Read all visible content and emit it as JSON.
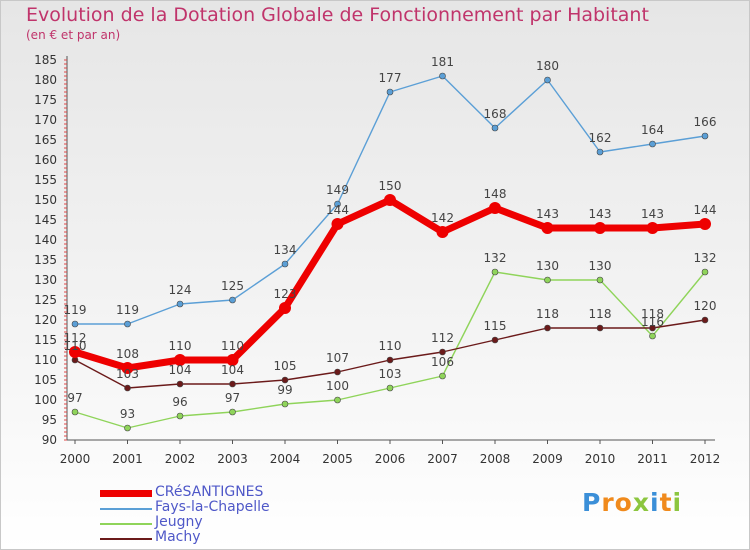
{
  "title": "Evolution de la Dotation Globale de Fonctionnement par Habitant",
  "subtitle": "(en € et par an)",
  "logo": {
    "letters": [
      "P",
      "r",
      "o",
      "x",
      "i",
      "t",
      "i"
    ],
    "colors": [
      "#3b8fd8",
      "#f08a1c",
      "#f08a1c",
      "#8cc63f",
      "#3b8fd8",
      "#f08a1c",
      "#8cc63f"
    ]
  },
  "chart_data": {
    "type": "line",
    "title": "Evolution de la Dotation Globale de Fonctionnement par Habitant",
    "subtitle": "(en € et par an)",
    "x": [
      "2000",
      "2001",
      "2002",
      "2003",
      "2004",
      "2005",
      "2006",
      "2007",
      "2008",
      "2009",
      "2010",
      "2011",
      "2012"
    ],
    "yticks": [
      90,
      95,
      100,
      105,
      110,
      115,
      120,
      125,
      130,
      135,
      140,
      145,
      150,
      155,
      160,
      165,
      170,
      175,
      180,
      185
    ],
    "ylim": [
      90,
      185
    ],
    "grid": false,
    "legend_position": "bottom-left",
    "series": [
      {
        "name": "Fays-la-Chapelle",
        "color": "#5b9fd6",
        "values": [
          119,
          119,
          124,
          125,
          134,
          149,
          177,
          181,
          168,
          180,
          162,
          164,
          166
        ],
        "labels": [
          "119",
          "119",
          "124",
          "125",
          "134",
          "149",
          "177",
          "181",
          "168",
          "180",
          "162",
          "164",
          "166"
        ]
      },
      {
        "name": "Jeugny",
        "color": "#8fd45a",
        "values": [
          97,
          93,
          96,
          97,
          99,
          100,
          103,
          106,
          132,
          130,
          130,
          116,
          132
        ],
        "labels": [
          "97",
          "93",
          "96",
          "97",
          "99",
          "100",
          "103",
          "106",
          "132",
          "130",
          "130",
          "116",
          "132"
        ]
      },
      {
        "name": "Machy",
        "color": "#6b1a1a",
        "values": [
          110,
          103,
          104,
          104,
          105,
          107,
          110,
          112,
          115,
          118,
          118,
          118,
          120
        ],
        "labels": [
          "110",
          "103",
          "104",
          "104",
          "105",
          "107",
          "110",
          "112",
          "115",
          "118",
          "118",
          "118",
          "120"
        ]
      },
      {
        "name": "CRéSANTIGNES",
        "color": "#ee0000",
        "values": [
          112,
          108,
          110,
          110,
          123,
          144,
          150,
          142,
          148,
          143,
          143,
          143,
          144
        ],
        "labels": [
          "112",
          "108",
          "110",
          "110",
          "123",
          "144",
          "150",
          "142",
          "148",
          "143",
          "143",
          "143",
          "144"
        ]
      }
    ]
  }
}
